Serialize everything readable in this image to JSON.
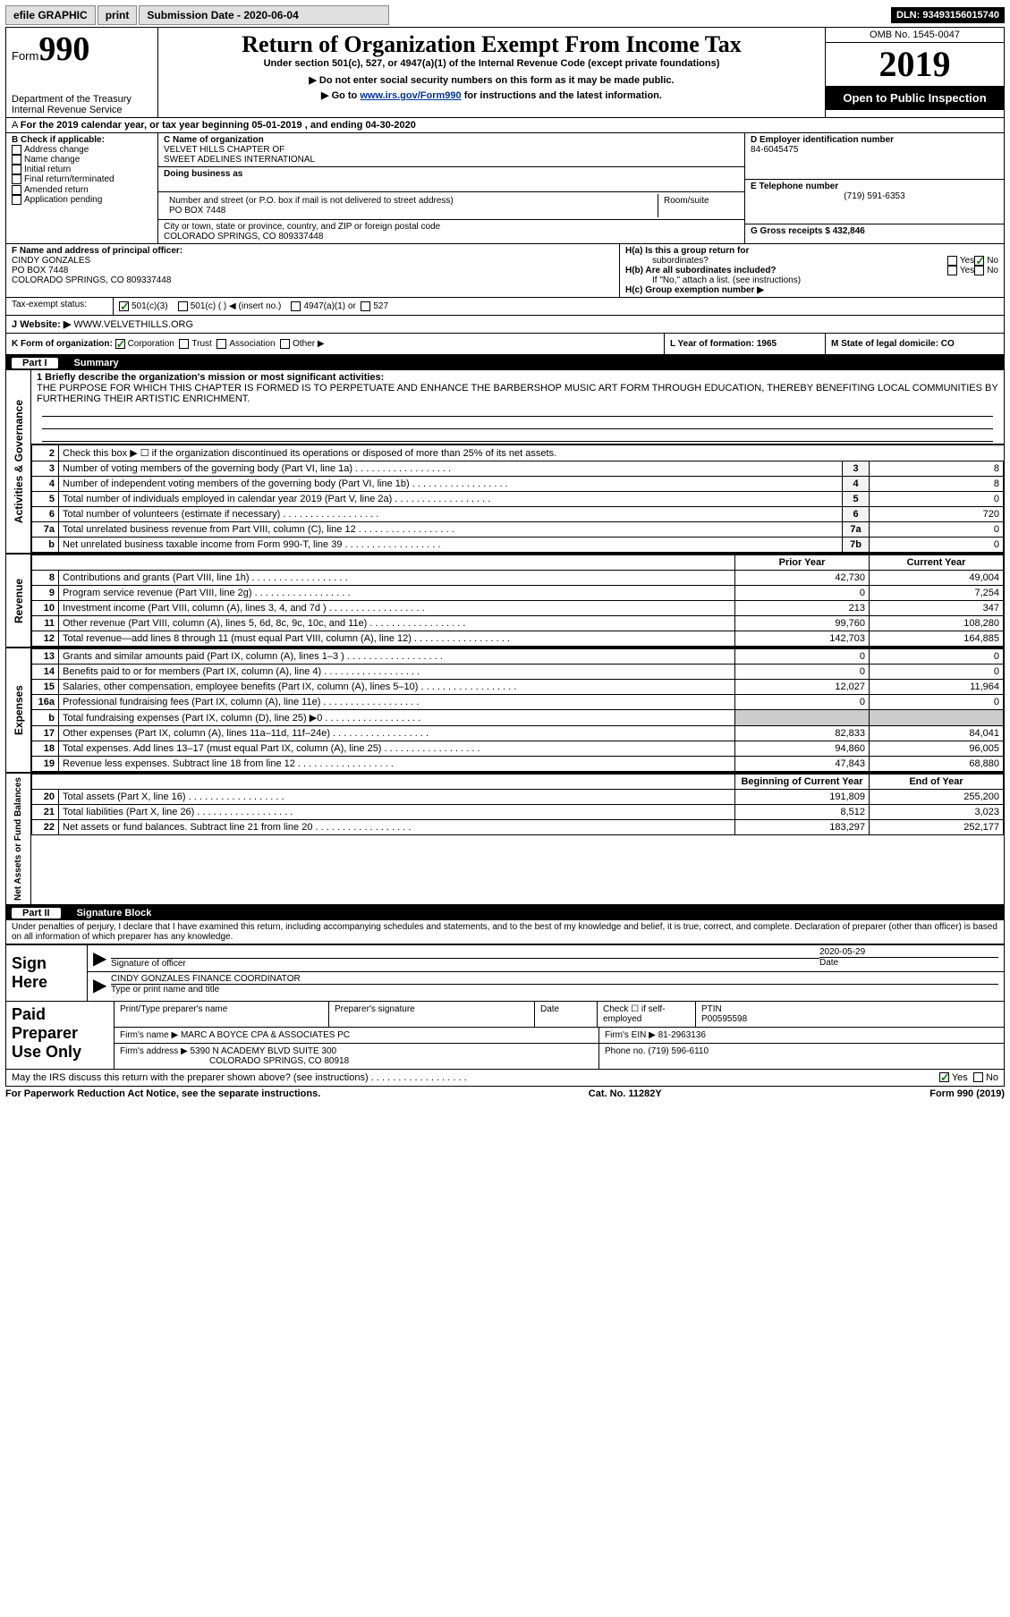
{
  "topbar": {
    "efile": "efile GRAPHIC",
    "print": "print",
    "subdate_lbl": "Submission Date - 2020-06-04",
    "dln": "DLN: 93493156015740"
  },
  "hdr": {
    "form": "990",
    "form_prefix": "Form",
    "title": "Return of Organization Exempt From Income Tax",
    "sub1": "Under section 501(c), 527, or 4947(a)(1) of the Internal Revenue Code (except private foundations)",
    "sub2": "▶ Do not enter social security numbers on this form as it may be made public.",
    "sub3_a": "▶ Go to ",
    "sub3_link": "www.irs.gov/Form990",
    "sub3_b": " for instructions and the latest information.",
    "dept": "Department of the Treasury\nInternal Revenue Service",
    "omb": "OMB No. 1545-0047",
    "year": "2019",
    "open": "Open to Public Inspection"
  },
  "a_row": "For the 2019 calendar year, or tax year beginning 05-01-2019   , and ending 04-30-2020",
  "box_b": {
    "hdr": "B Check if applicable:",
    "opts": [
      "Address change",
      "Name change",
      "Initial return",
      "Final return/terminated",
      "Amended return",
      "Application pending"
    ]
  },
  "box_c": {
    "name_lbl": "C Name of organization",
    "name": "VELVET HILLS CHAPTER OF\nSWEET ADELINES INTERNATIONAL",
    "dba_lbl": "Doing business as",
    "addr_lbl": "Number and street (or P.O. box if mail is not delivered to street address)",
    "room_lbl": "Room/suite",
    "addr": "PO BOX 7448",
    "city_lbl": "City or town, state or province, country, and ZIP or foreign postal code",
    "city": "COLORADO SPRINGS, CO  809337448"
  },
  "box_d": {
    "lbl": "D Employer identification number",
    "val": "84-6045475"
  },
  "box_e": {
    "lbl": "E Telephone number",
    "val": "(719) 591-6353"
  },
  "box_g": {
    "lbl": "G Gross receipts $ 432,846"
  },
  "box_f": {
    "lbl": "F  Name and address of principal officer:",
    "name": "CINDY GONZALES",
    "addr1": "PO BOX 7448",
    "addr2": "COLORADO SPRINGS, CO  809337448"
  },
  "box_h": {
    "a": "H(a)  Is this a group return for",
    "a2": "subordinates?",
    "b": "H(b)  Are all subordinates included?",
    "bnote": "If \"No,\" attach a list. (see instructions)",
    "c": "H(c)  Group exemption number ▶"
  },
  "tax_status": "Tax-exempt status:",
  "status_opts": [
    "501(c)(3)",
    "501(c) (  ) ◀ (insert no.)",
    "4947(a)(1) or",
    "527"
  ],
  "website_lbl": "Website: ▶",
  "website": "WWW.VELVETHILLS.ORG",
  "box_k": "K Form of organization:",
  "k_opts": [
    "Corporation",
    "Trust",
    "Association",
    "Other ▶"
  ],
  "box_l": "L Year of formation: 1965",
  "box_m": "M State of legal domicile: CO",
  "part1": {
    "pn": "Part I",
    "title": "Summary"
  },
  "mission_lbl": "1  Briefly describe the organization's mission or most significant activities:",
  "mission": "THE PURPOSE FOR WHICH THIS CHAPTER IS FORMED IS TO PERPETUATE AND ENHANCE THE BARBERSHOP MUSIC ART FORM THROUGH EDUCATION, THEREBY BENEFITING LOCAL COMMUNITIES BY FURTHERING THEIR ARTISTIC ENRICHMENT.",
  "line2": "Check this box ▶ ☐  if the organization discontinued its operations or disposed of more than 25% of its net assets.",
  "gov_lines": [
    {
      "n": "3",
      "t": "Number of voting members of the governing body (Part VI, line 1a)",
      "b": "3",
      "v": "8"
    },
    {
      "n": "4",
      "t": "Number of independent voting members of the governing body (Part VI, line 1b)",
      "b": "4",
      "v": "8"
    },
    {
      "n": "5",
      "t": "Total number of individuals employed in calendar year 2019 (Part V, line 2a)",
      "b": "5",
      "v": "0"
    },
    {
      "n": "6",
      "t": "Total number of volunteers (estimate if necessary)",
      "b": "6",
      "v": "720"
    },
    {
      "n": "7a",
      "t": "Total unrelated business revenue from Part VIII, column (C), line 12",
      "b": "7a",
      "v": "0"
    },
    {
      "n": "b",
      "t": "Net unrelated business taxable income from Form 990-T, line 39",
      "b": "7b",
      "v": "0"
    }
  ],
  "col_hdr": {
    "py": "Prior Year",
    "cy": "Current Year"
  },
  "rev_lines": [
    {
      "n": "8",
      "t": "Contributions and grants (Part VIII, line 1h)",
      "py": "42,730",
      "cy": "49,004"
    },
    {
      "n": "9",
      "t": "Program service revenue (Part VIII, line 2g)",
      "py": "0",
      "cy": "7,254"
    },
    {
      "n": "10",
      "t": "Investment income (Part VIII, column (A), lines 3, 4, and 7d )",
      "py": "213",
      "cy": "347"
    },
    {
      "n": "11",
      "t": "Other revenue (Part VIII, column (A), lines 5, 6d, 8c, 9c, 10c, and 11e)",
      "py": "99,760",
      "cy": "108,280"
    },
    {
      "n": "12",
      "t": "Total revenue—add lines 8 through 11 (must equal Part VIII, column (A), line 12)",
      "py": "142,703",
      "cy": "164,885"
    }
  ],
  "exp_lines": [
    {
      "n": "13",
      "t": "Grants and similar amounts paid (Part IX, column (A), lines 1–3 )",
      "py": "0",
      "cy": "0"
    },
    {
      "n": "14",
      "t": "Benefits paid to or for members (Part IX, column (A), line 4)",
      "py": "0",
      "cy": "0"
    },
    {
      "n": "15",
      "t": "Salaries, other compensation, employee benefits (Part IX, column (A), lines 5–10)",
      "py": "12,027",
      "cy": "11,964"
    },
    {
      "n": "16a",
      "t": "Professional fundraising fees (Part IX, column (A), line 11e)",
      "py": "0",
      "cy": "0"
    },
    {
      "n": "b",
      "t": "Total fundraising expenses (Part IX, column (D), line 25) ▶0",
      "py": "shade",
      "cy": "shade"
    },
    {
      "n": "17",
      "t": "Other expenses (Part IX, column (A), lines 11a–11d, 11f–24e)",
      "py": "82,833",
      "cy": "84,041"
    },
    {
      "n": "18",
      "t": "Total expenses. Add lines 13–17 (must equal Part IX, column (A), line 25)",
      "py": "94,860",
      "cy": "96,005"
    },
    {
      "n": "19",
      "t": "Revenue less expenses. Subtract line 18 from line 12",
      "py": "47,843",
      "cy": "68,880"
    }
  ],
  "na_hdr": {
    "py": "Beginning of Current Year",
    "cy": "End of Year"
  },
  "na_lines": [
    {
      "n": "20",
      "t": "Total assets (Part X, line 16)",
      "py": "191,809",
      "cy": "255,200"
    },
    {
      "n": "21",
      "t": "Total liabilities (Part X, line 26)",
      "py": "8,512",
      "cy": "3,023"
    },
    {
      "n": "22",
      "t": "Net assets or fund balances. Subtract line 21 from line 20",
      "py": "183,297",
      "cy": "252,177"
    }
  ],
  "part2": {
    "pn": "Part II",
    "title": "Signature Block"
  },
  "penalty": "Under penalties of perjury, I declare that I have examined this return, including accompanying schedules and statements, and to the best of my knowledge and belief, it is true, correct, and complete. Declaration of preparer (other than officer) is based on all information of which preparer has any knowledge.",
  "sign": {
    "here": "Sign Here",
    "sig_lbl": "Signature of officer",
    "date_lbl": "Date",
    "date": "2020-05-29",
    "name": "CINDY GONZALES  FINANCE COORDINATOR",
    "name_lbl": "Type or print name and title"
  },
  "paid": {
    "title": "Paid Preparer Use Only",
    "col1": "Print/Type preparer's name",
    "col2": "Preparer's signature",
    "col3": "Date",
    "col4_a": "Check ☐ if self-employed",
    "col5": "PTIN",
    "ptin": "P00595598",
    "firm_lbl": "Firm's name   ▶",
    "firm": "MARC A BOYCE CPA & ASSOCIATES PC",
    "ein_lbl": "Firm's EIN ▶",
    "ein": "81-2963136",
    "addr_lbl": "Firm's address ▶",
    "addr1": "5390 N ACADEMY BLVD SUITE 300",
    "addr2": "COLORADO SPRINGS, CO  80918",
    "phone_lbl": "Phone no.",
    "phone": "(719) 596-6110"
  },
  "discuss": "May the IRS discuss this return with the preparer shown above? (see instructions)",
  "foot": {
    "l": "For Paperwork Reduction Act Notice, see the separate instructions.",
    "m": "Cat. No. 11282Y",
    "r": "Form 990 (2019)"
  },
  "labels": {
    "gov": "Activities & Governance",
    "rev": "Revenue",
    "exp": "Expenses",
    "na": "Net Assets or Fund Balances",
    "yes": "Yes",
    "no": "No"
  }
}
